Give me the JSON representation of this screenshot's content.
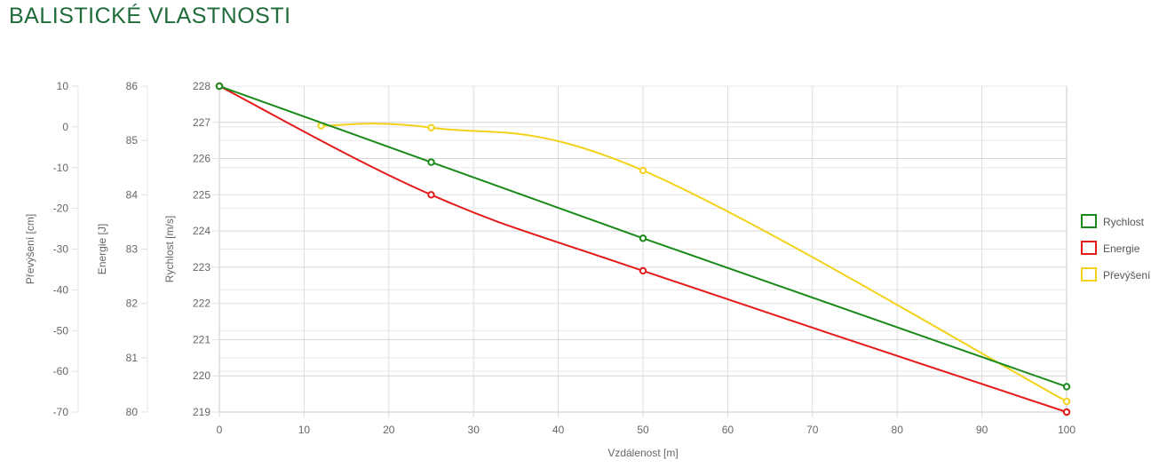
{
  "page": {
    "title": "BALISTICKÉ VLASTNOSTI"
  },
  "chart_data": {
    "type": "line",
    "xlabel": "Vzdálenost [m]",
    "xlim": [
      0,
      100
    ],
    "xticks": [
      0,
      10,
      20,
      30,
      40,
      50,
      60,
      70,
      80,
      90,
      100
    ],
    "grid": true,
    "legend_position": "right",
    "axes": {
      "rychlost": {
        "label": "Rychlost [m/s]",
        "min": 219,
        "max": 228,
        "ticks": [
          228,
          227,
          226,
          225,
          224,
          223,
          222,
          221,
          220,
          219
        ]
      },
      "energie": {
        "label": "Energie [J]",
        "min": 80,
        "max": 86,
        "ticks": [
          86,
          85,
          84,
          83,
          82,
          81,
          80
        ]
      },
      "prevyseni": {
        "label": "Převýšení [cm]",
        "min": -70,
        "max": 10,
        "ticks": [
          10,
          0,
          -10,
          -20,
          -30,
          -40,
          -50,
          -60,
          -70
        ]
      }
    },
    "series": [
      {
        "name": "Rychlost",
        "axis": "rychlost",
        "color": "#1a8a1a",
        "smooth": false,
        "points": [
          [
            0,
            228
          ],
          [
            25,
            225.9
          ],
          [
            50,
            223.8
          ],
          [
            100,
            219.7
          ]
        ]
      },
      {
        "name": "Energie",
        "axis": "energie",
        "color": "#e31b1b",
        "smooth": true,
        "points": [
          [
            0,
            86
          ],
          [
            25,
            84
          ],
          [
            50,
            82.6
          ],
          [
            100,
            80
          ]
        ]
      },
      {
        "name": "Převýšení",
        "axis": "prevyseni",
        "color": "#f2d21b",
        "smooth": true,
        "points": [
          [
            12,
            0.3
          ],
          [
            25,
            -0.2
          ],
          [
            50,
            -10.7
          ],
          [
            100,
            -67.4
          ]
        ]
      }
    ]
  }
}
